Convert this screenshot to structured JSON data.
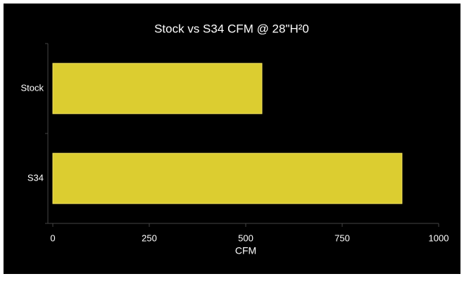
{
  "chart_data": {
    "type": "bar",
    "orientation": "horizontal",
    "title": "Stock vs S34 CFM @ 28\"H²0",
    "x_label": "CFM",
    "categories": [
      "Stock",
      "S34"
    ],
    "values": [
      542,
      905
    ],
    "color": "#dccd30",
    "xlim": [
      0,
      1000
    ],
    "xticks": [
      0,
      250,
      500,
      750,
      1000
    ]
  }
}
